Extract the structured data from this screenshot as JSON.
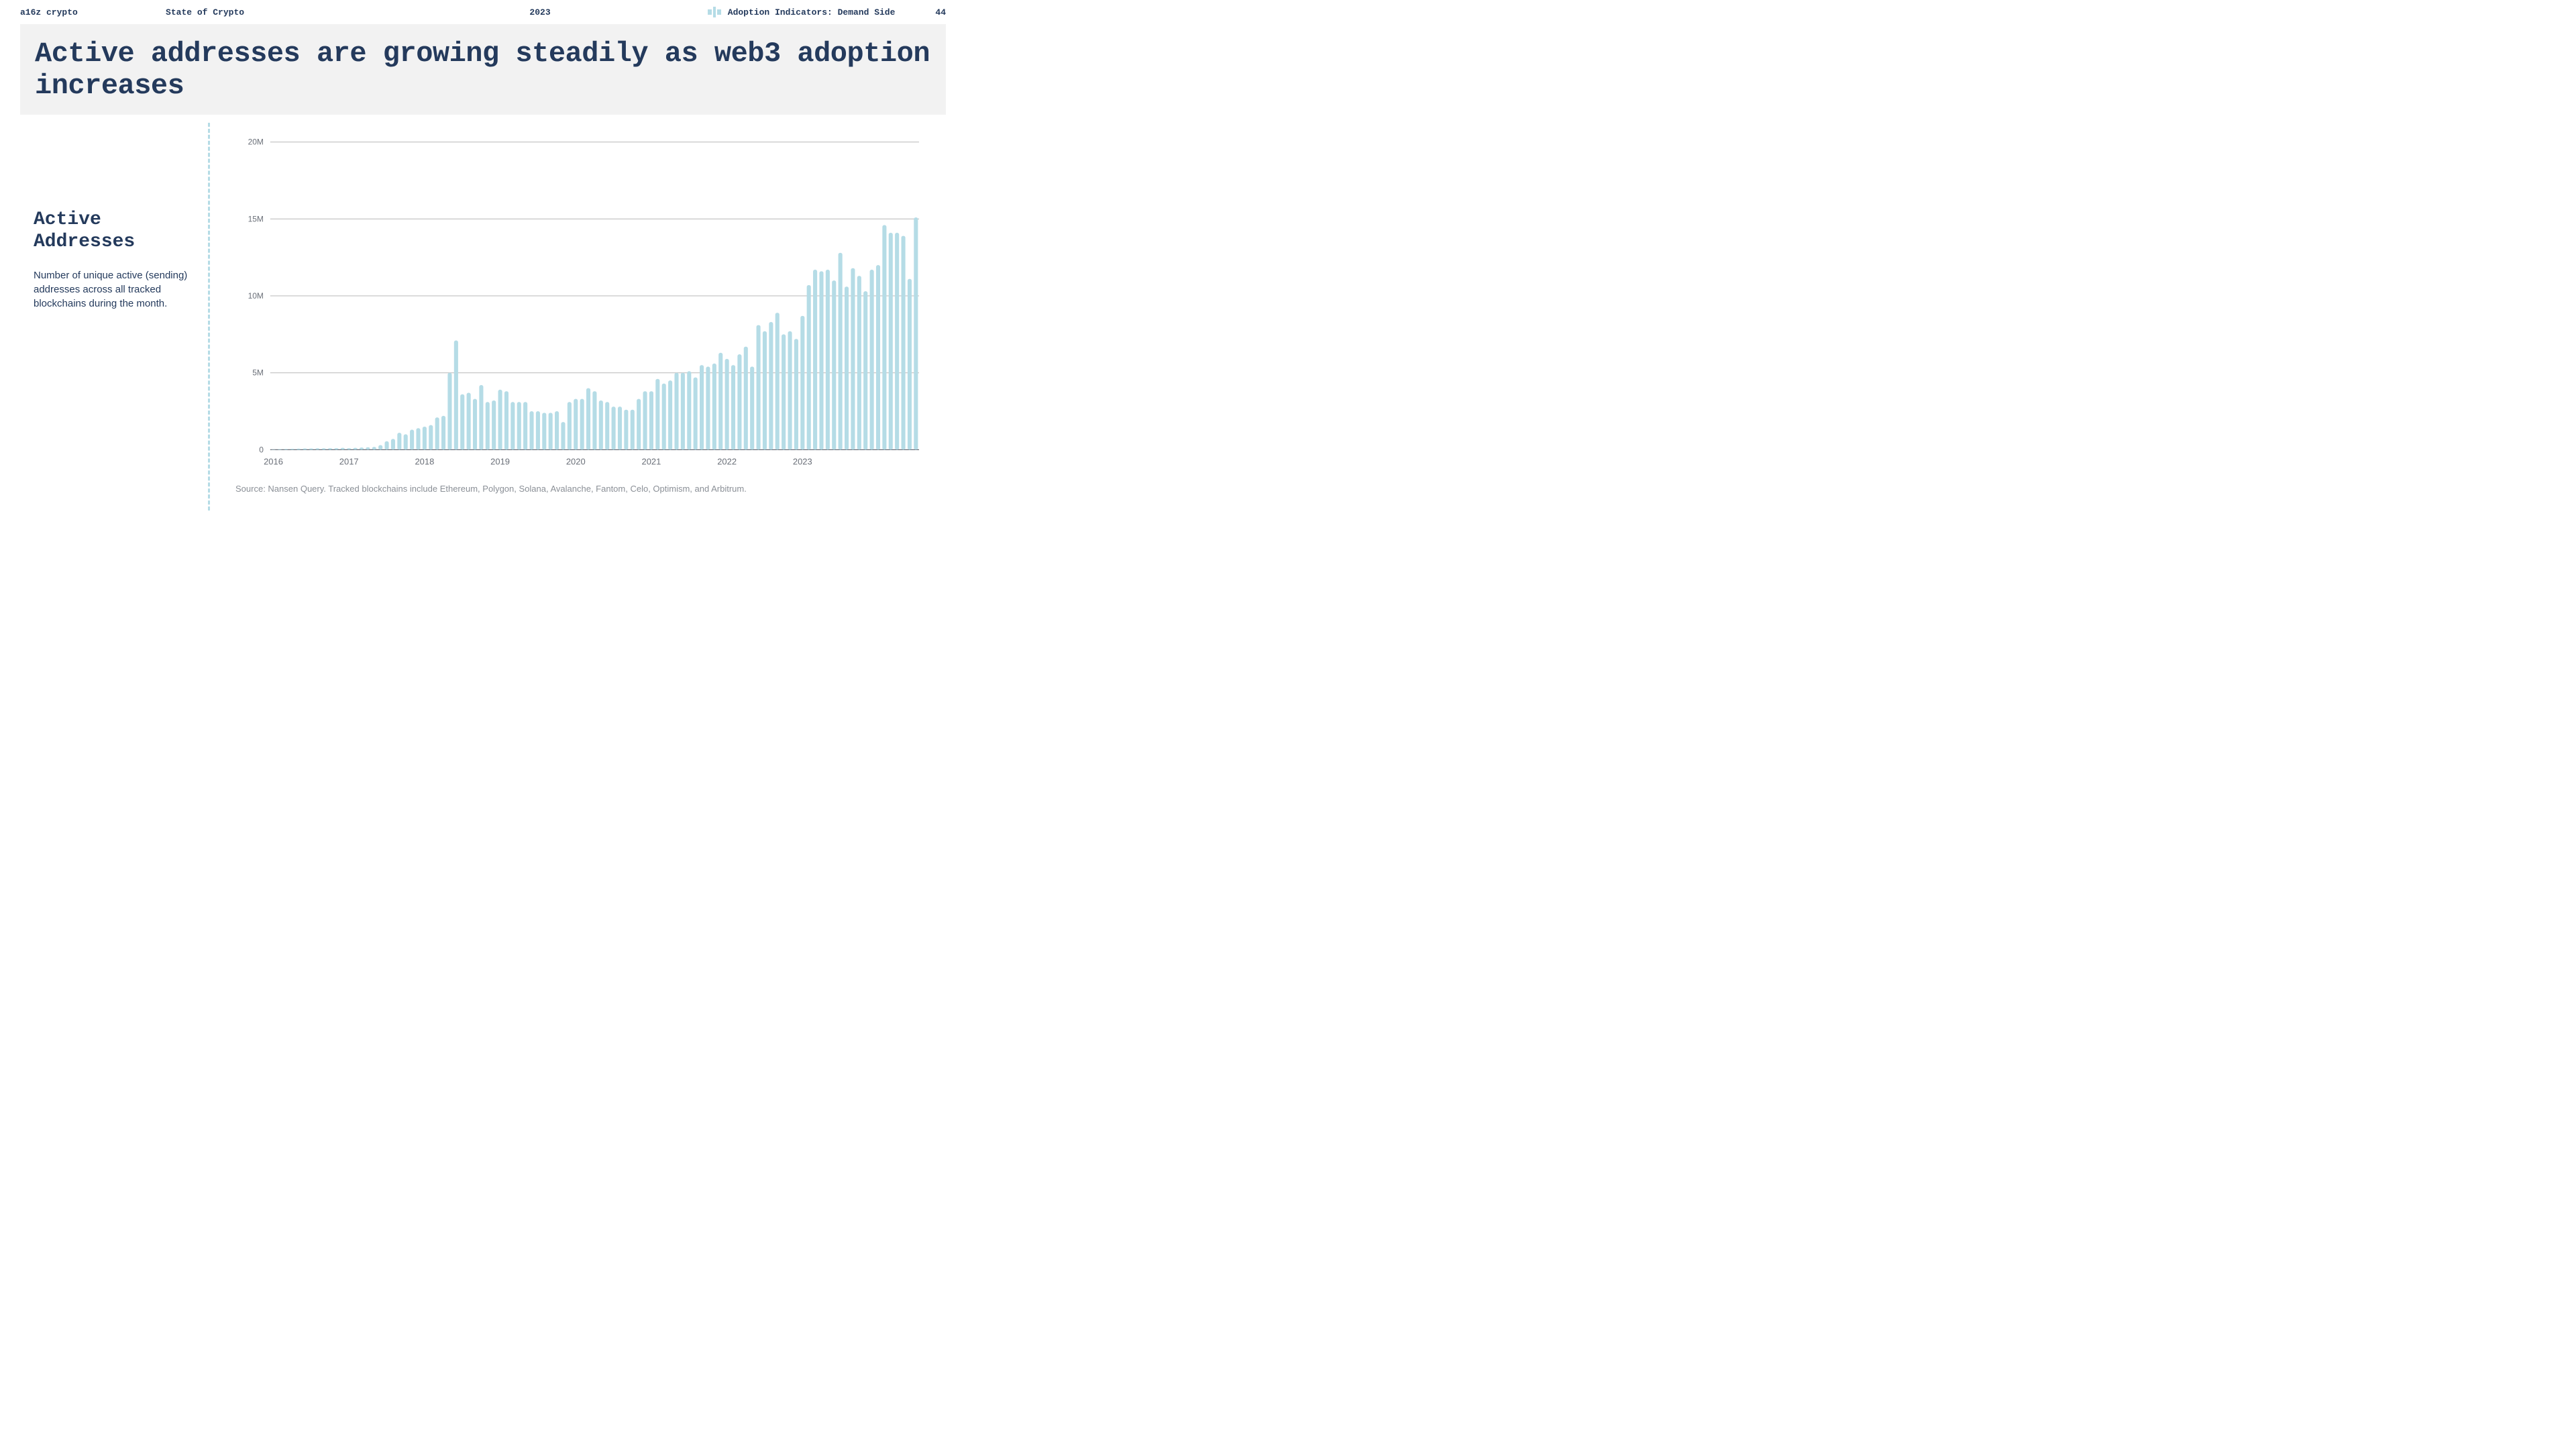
{
  "header": {
    "brand": "a16z crypto",
    "doc_title": "State of Crypto",
    "year": "2023",
    "section": "Adoption Indicators: Demand Side",
    "page": "44",
    "section_icon_color": "#b5dce6"
  },
  "title": "Active addresses are growing steadily as web3 adoption increases",
  "sidebar": {
    "heading": "Active Addresses",
    "description": "Number of unique active (sending) addresses across all tracked blockchains during the month."
  },
  "chart": {
    "type": "bar",
    "bar_color": "#b5dce6",
    "background": "#ffffff",
    "grid_color": "#b8b8b8",
    "baseline_color": "#6a6f78",
    "axis_label_color": "#6a6f78",
    "ylim": [
      0,
      20000000
    ],
    "yticks": [
      0,
      5000000,
      10000000,
      15000000,
      20000000
    ],
    "ytick_labels": [
      "0",
      "5M",
      "10M",
      "15M",
      "20M"
    ],
    "x_start_year": 2016,
    "x_year_labels": [
      "2016",
      "2017",
      "2018",
      "2019",
      "2020",
      "2021",
      "2022",
      "2023"
    ],
    "values": [
      0.02,
      0.04,
      0.05,
      0.06,
      0.07,
      0.08,
      0.08,
      0.09,
      0.09,
      0.1,
      0.1,
      0.12,
      0.1,
      0.12,
      0.14,
      0.16,
      0.18,
      0.3,
      0.55,
      0.7,
      1.1,
      1.0,
      1.3,
      1.4,
      1.5,
      1.6,
      2.1,
      2.2,
      5.0,
      7.1,
      3.6,
      3.7,
      3.3,
      4.2,
      3.1,
      3.2,
      3.9,
      3.8,
      3.1,
      3.1,
      3.1,
      2.5,
      2.5,
      2.4,
      2.4,
      2.5,
      1.8,
      3.1,
      3.3,
      3.3,
      4.0,
      3.8,
      3.2,
      3.1,
      2.8,
      2.8,
      2.6,
      2.6,
      3.3,
      3.8,
      3.8,
      4.6,
      4.3,
      4.5,
      5.0,
      5.0,
      5.1,
      4.7,
      5.5,
      5.4,
      5.6,
      6.3,
      5.9,
      5.5,
      6.2,
      6.7,
      5.4,
      8.1,
      7.7,
      8.3,
      8.9,
      7.5,
      7.7,
      7.2,
      8.7,
      10.7,
      11.7,
      11.6,
      11.7,
      11.0,
      12.8,
      10.6,
      11.8,
      11.3,
      10.3,
      11.7,
      12.0,
      14.6,
      14.1,
      14.1,
      13.9,
      11.1,
      15.1
    ],
    "bar_gap_ratio": 0.35
  },
  "source": "Source: Nansen Query. Tracked blockchains include Ethereum, Polygon, Solana, Avalanche, Fantom, Celo, Optimism, and Arbitrum."
}
